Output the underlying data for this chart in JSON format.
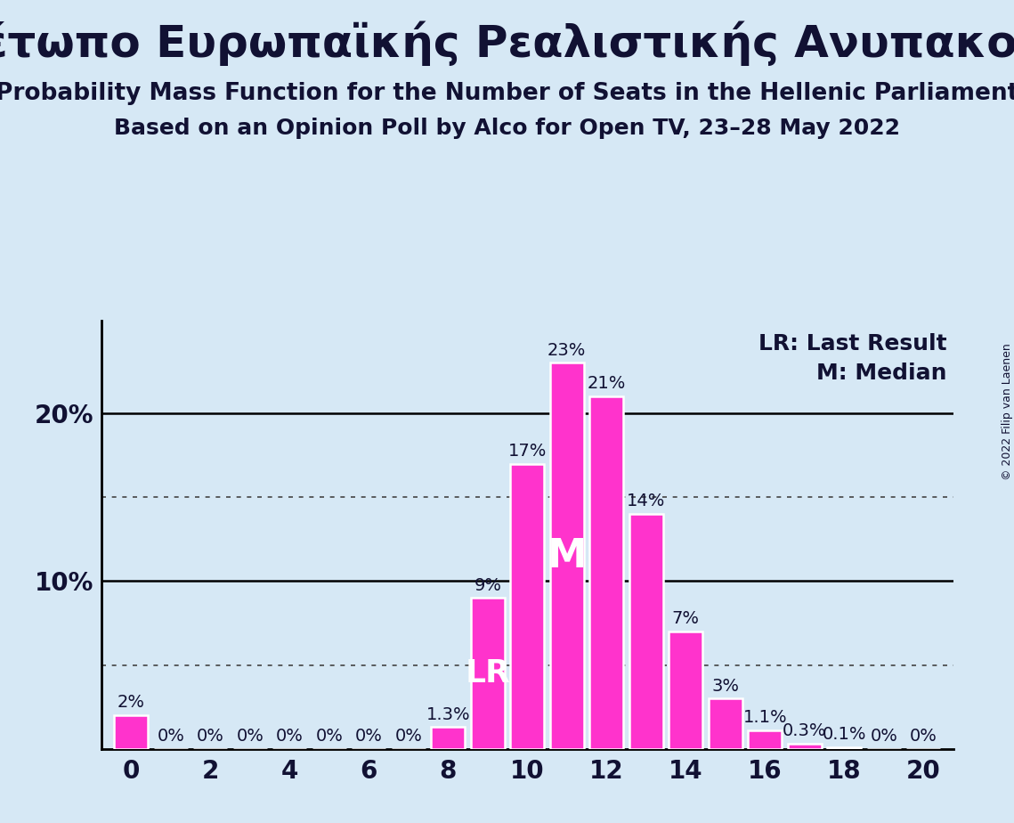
{
  "title_greek": "Μέτωπο Ευρωπαϊκής Ρεαλιστικής Ανυπακοής",
  "subtitle1": "Probability Mass Function for the Number of Seats in the Hellenic Parliament",
  "subtitle2": "Based on an Opinion Poll by Alco for Open TV, 23–28 May 2022",
  "copyright_text": "© 2022 Filip van Laenen",
  "legend_lr": "LR: Last Result",
  "legend_m": "M: Median",
  "seats": [
    0,
    1,
    2,
    3,
    4,
    5,
    6,
    7,
    8,
    9,
    10,
    11,
    12,
    13,
    14,
    15,
    16,
    17,
    18,
    19,
    20
  ],
  "probabilities": [
    2.0,
    0.0,
    0.0,
    0.0,
    0.0,
    0.0,
    0.0,
    0.0,
    1.3,
    9.0,
    17.0,
    23.0,
    21.0,
    14.0,
    7.0,
    3.0,
    1.1,
    0.3,
    0.1,
    0.0,
    0.0
  ],
  "bar_labels": [
    "2%",
    "0%",
    "0%",
    "0%",
    "0%",
    "0%",
    "0%",
    "0%",
    "1.3%",
    "9%",
    "17%",
    "23%",
    "21%",
    "14%",
    "7%",
    "3%",
    "1.1%",
    "0.3%",
    "0.1%",
    "0%",
    "0%"
  ],
  "bar_color": "#FF33CC",
  "bar_edge_color": "#FFFFFF",
  "background_color": "#D6E8F5",
  "text_color": "#111133",
  "label_above_color": "#111133",
  "label_inside_color": "#FFFFFF",
  "last_result_seat": 9,
  "median_seat": 11,
  "lr_label": "LR",
  "m_label": "M",
  "ylim_max": 25.5,
  "solid_yticks": [
    10,
    20
  ],
  "dotted_yticks": [
    5,
    15
  ],
  "title_fontsize": 36,
  "subtitle_fontsize": 19,
  "subtitle2_fontsize": 18,
  "axis_tick_fontsize": 20,
  "bar_label_fontsize": 14,
  "inside_label_fontsize": 26,
  "legend_fontsize": 18,
  "copyright_fontsize": 9
}
